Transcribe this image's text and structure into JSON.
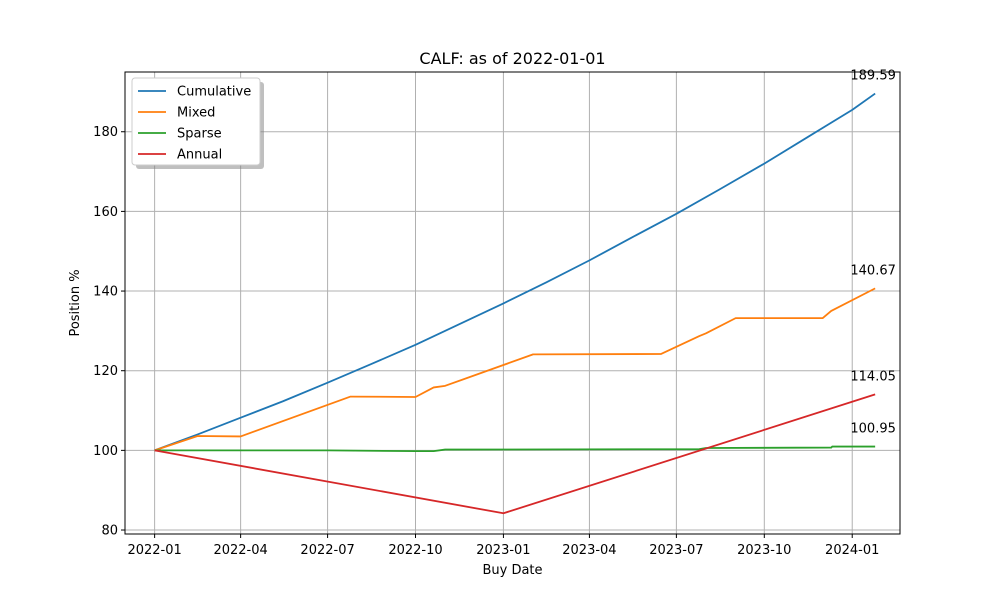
{
  "chart_data": {
    "type": "line",
    "title": "CALF: as of 2022-01-01",
    "xlabel": "Buy Date",
    "ylabel": "Position %",
    "xlim": [
      "2021-12-01",
      "2024-02-20"
    ],
    "ylim": [
      79,
      195
    ],
    "grid": true,
    "legend_position": "top-left",
    "x_ticks": [
      "2022-01-01",
      "2022-04-01",
      "2022-07-01",
      "2022-10-01",
      "2023-01-01",
      "2023-04-01",
      "2023-07-01",
      "2023-10-01",
      "2024-01-01"
    ],
    "x_tick_labels": [
      "2022-01",
      "2022-04",
      "2022-07",
      "2022-10",
      "2023-01",
      "2023-04",
      "2023-07",
      "2023-10",
      "2024-01"
    ],
    "y_ticks": [
      80,
      100,
      120,
      140,
      160,
      180
    ],
    "y_tick_labels": [
      "80",
      "100",
      "120",
      "140",
      "160",
      "180"
    ],
    "series": [
      {
        "name": "Cumulative",
        "color": "#1f77b4",
        "end_label": "189.59",
        "points": [
          [
            "2022-01-01",
            100
          ],
          [
            "2022-02-15",
            104.0
          ],
          [
            "2022-04-01",
            108.2
          ],
          [
            "2022-05-15",
            112.3
          ],
          [
            "2022-07-01",
            117.0
          ],
          [
            "2022-08-15",
            121.6
          ],
          [
            "2022-10-01",
            126.5
          ],
          [
            "2022-11-15",
            131.6
          ],
          [
            "2023-01-01",
            136.9
          ],
          [
            "2023-02-15",
            142.2
          ],
          [
            "2023-04-01",
            147.7
          ],
          [
            "2023-05-15",
            153.4
          ],
          [
            "2023-07-01",
            159.4
          ],
          [
            "2023-08-15",
            165.5
          ],
          [
            "2023-10-01",
            172.0
          ],
          [
            "2023-11-15",
            178.6
          ],
          [
            "2024-01-01",
            185.5
          ],
          [
            "2024-01-25",
            189.59
          ]
        ]
      },
      {
        "name": "Mixed",
        "color": "#ff7f0e",
        "end_label": "140.67",
        "points": [
          [
            "2022-01-01",
            100
          ],
          [
            "2022-02-15",
            103.6
          ],
          [
            "2022-04-01",
            103.5
          ],
          [
            "2022-07-25",
            113.5
          ],
          [
            "2022-10-01",
            113.4
          ],
          [
            "2022-10-20",
            115.8
          ],
          [
            "2022-11-01",
            116.2
          ],
          [
            "2023-02-01",
            124.1
          ],
          [
            "2023-06-15",
            124.2
          ],
          [
            "2023-07-25",
            128.7
          ],
          [
            "2023-08-01",
            129.4
          ],
          [
            "2023-09-01",
            133.2
          ],
          [
            "2023-12-01",
            133.2
          ],
          [
            "2023-12-10",
            135.0
          ],
          [
            "2024-01-25",
            140.67
          ]
        ]
      },
      {
        "name": "Sparse",
        "color": "#2ca02c",
        "end_label": "100.95",
        "points": [
          [
            "2022-01-01",
            100
          ],
          [
            "2022-07-01",
            100.0
          ],
          [
            "2022-10-01",
            99.8
          ],
          [
            "2022-10-20",
            99.8
          ],
          [
            "2022-11-01",
            100.2
          ],
          [
            "2023-07-25",
            100.3
          ],
          [
            "2023-08-01",
            100.6
          ],
          [
            "2023-12-10",
            100.7
          ],
          [
            "2023-12-11",
            100.95
          ],
          [
            "2024-01-25",
            100.95
          ]
        ]
      },
      {
        "name": "Annual",
        "color": "#d62728",
        "end_label": "114.05",
        "points": [
          [
            "2022-01-01",
            100
          ],
          [
            "2023-01-01",
            84.2
          ],
          [
            "2024-01-25",
            114.05
          ]
        ]
      }
    ]
  }
}
